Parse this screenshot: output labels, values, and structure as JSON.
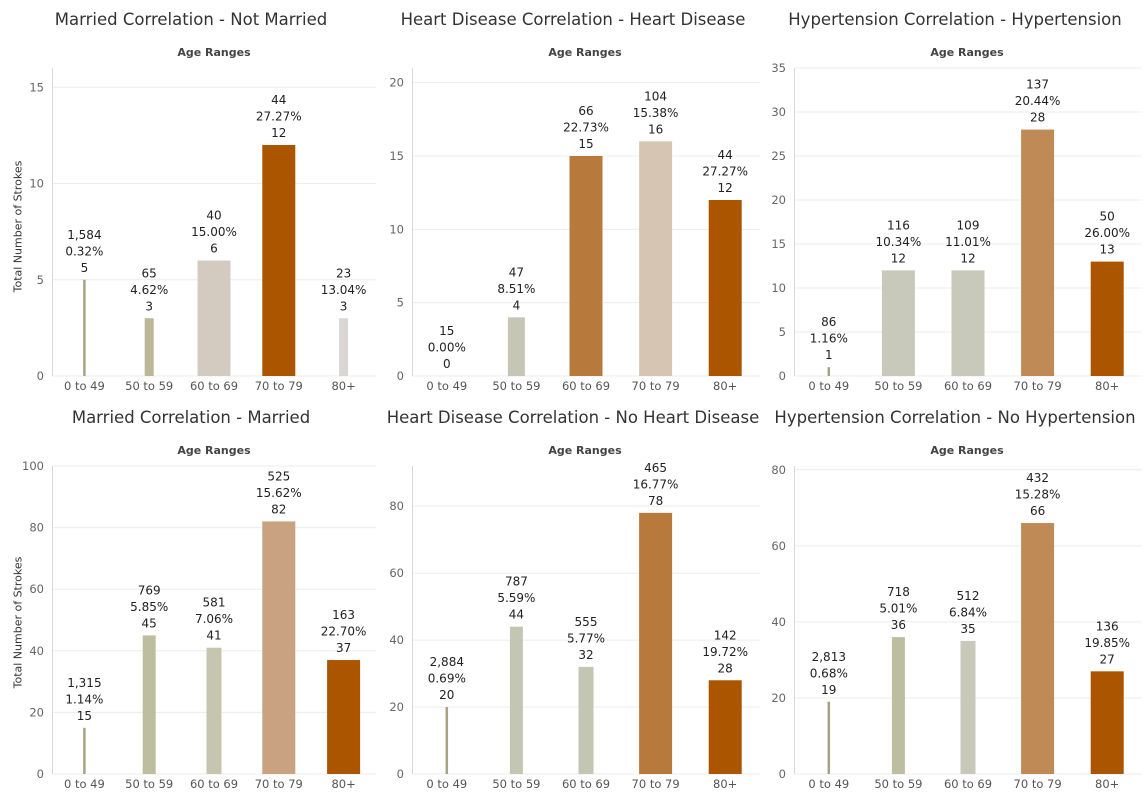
{
  "axis_header": "Age Ranges",
  "y_axis_label": "Total Number of Strokes",
  "chart_data": [
    {
      "type": "bar",
      "title": "Married Correlation - Not Married",
      "xlabel": "Age Ranges",
      "ylabel": "Total Number of Strokes",
      "ylim": [
        0,
        16
      ],
      "yticks": [
        0,
        5,
        10,
        15
      ],
      "categories": [
        "0 to 49",
        "50 to 59",
        "60 to 69",
        "70 to 79",
        "80+"
      ],
      "values": [
        5,
        3,
        6,
        12,
        3
      ],
      "totals": [
        "1,584",
        "65",
        "40",
        "44",
        "23"
      ],
      "percents": [
        "0.32%",
        "4.62%",
        "15.00%",
        "27.27%",
        "13.04%"
      ],
      "colors": [
        "#a6a383",
        "#bcb797",
        "#d3cbc0",
        "#ab5500",
        "#d8d7d4"
      ]
    },
    {
      "type": "bar",
      "title": "Heart Disease Correlation - Heart Disease",
      "xlabel": "Age Ranges",
      "ylabel": "",
      "ylim": [
        0,
        21
      ],
      "yticks": [
        0,
        5,
        10,
        15,
        20
      ],
      "categories": [
        "0 to 49",
        "50 to 59",
        "60 to 69",
        "70 to 79",
        "80+"
      ],
      "values": [
        0,
        4,
        15,
        16,
        12
      ],
      "totals": [
        "15",
        "47",
        "66",
        "104",
        "44"
      ],
      "percents": [
        "0.00%",
        "8.51%",
        "22.73%",
        "15.38%",
        "27.27%"
      ],
      "colors": [
        "#a6a383",
        "#c5c6b5",
        "#b8793c",
        "#d6c5b3",
        "#ab5500"
      ]
    },
    {
      "type": "bar",
      "title": "Hypertension Correlation - Hypertension",
      "xlabel": "Age Ranges",
      "ylabel": "",
      "ylim": [
        0,
        35
      ],
      "yticks": [
        0,
        5,
        10,
        15,
        20,
        25,
        30,
        35
      ],
      "categories": [
        "0 to 49",
        "50 to 59",
        "60 to 69",
        "70 to 79",
        "80+"
      ],
      "values": [
        1,
        12,
        12,
        28,
        13
      ],
      "totals": [
        "86",
        "116",
        "109",
        "137",
        "50"
      ],
      "percents": [
        "1.16%",
        "10.34%",
        "11.01%",
        "20.44%",
        "26.00%"
      ],
      "colors": [
        "#a6a383",
        "#c8c8bb",
        "#c8c8bb",
        "#bf8a56",
        "#ab5500"
      ]
    },
    {
      "type": "bar",
      "title": "Married Correlation - Married",
      "xlabel": "Age Ranges",
      "ylabel": "Total Number of Strokes",
      "ylim": [
        0,
        100
      ],
      "yticks": [
        0,
        20,
        40,
        60,
        80,
        100
      ],
      "categories": [
        "0 to 49",
        "50 to 59",
        "60 to 69",
        "70 to 79",
        "80+"
      ],
      "values": [
        15,
        45,
        41,
        82,
        37
      ],
      "totals": [
        "1,315",
        "769",
        "581",
        "525",
        "163"
      ],
      "percents": [
        "1.14%",
        "5.85%",
        "7.06%",
        "15.62%",
        "22.70%"
      ],
      "colors": [
        "#a6a383",
        "#bdbd9f",
        "#c5c5b0",
        "#c9a281",
        "#ab5500"
      ]
    },
    {
      "type": "bar",
      "title": "Heart Disease Correlation - No Heart Disease",
      "xlabel": "Age Ranges",
      "ylabel": "",
      "ylim": [
        0,
        92
      ],
      "yticks": [
        0,
        20,
        40,
        60,
        80
      ],
      "categories": [
        "0 to 49",
        "50 to 59",
        "60 to 69",
        "70 to 79",
        "80+"
      ],
      "values": [
        20,
        44,
        32,
        78,
        28
      ],
      "totals": [
        "2,884",
        "787",
        "555",
        "465",
        "142"
      ],
      "percents": [
        "0.69%",
        "5.59%",
        "5.77%",
        "16.77%",
        "19.72%"
      ],
      "colors": [
        "#a6a383",
        "#c3c6b2",
        "#c3c6b2",
        "#b8793c",
        "#ab5500"
      ]
    },
    {
      "type": "bar",
      "title": "Hypertension Correlation - No Hypertension",
      "xlabel": "Age Ranges",
      "ylabel": "",
      "ylim": [
        0,
        81
      ],
      "yticks": [
        0,
        20,
        40,
        60,
        80
      ],
      "categories": [
        "0 to 49",
        "50 to 59",
        "60 to 69",
        "70 to 79",
        "80+"
      ],
      "values": [
        19,
        36,
        35,
        66,
        27
      ],
      "totals": [
        "2,813",
        "718",
        "512",
        "432",
        "136"
      ],
      "percents": [
        "0.68%",
        "5.01%",
        "6.84%",
        "15.28%",
        "19.85%"
      ],
      "colors": [
        "#a6a383",
        "#bdbd9f",
        "#c8c8bb",
        "#bf8a56",
        "#ab5500"
      ]
    }
  ]
}
